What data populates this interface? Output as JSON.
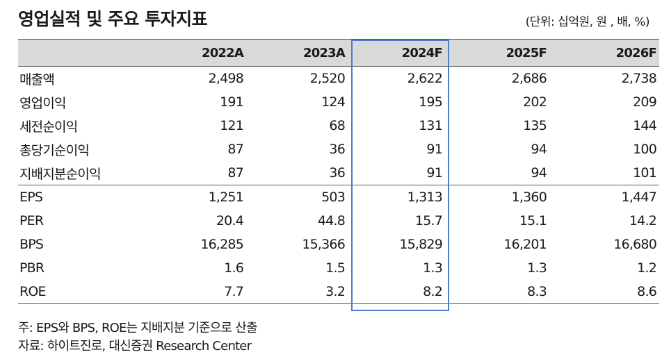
{
  "title": "영업실적 및 주요 투자지표",
  "unit": "(단위: 십억원, 원 , 배, %)",
  "table": {
    "headers": [
      "",
      "2022A",
      "2023A",
      "2024F",
      "2025F",
      "2026F"
    ],
    "rows": [
      [
        "매출액",
        "2,498",
        "2,520",
        "2,622",
        "2,686",
        "2,738"
      ],
      [
        "영업이익",
        "191",
        "124",
        "195",
        "202",
        "209"
      ],
      [
        "세전순이익",
        "121",
        "68",
        "131",
        "135",
        "144"
      ],
      [
        "총당기순이익",
        "87",
        "36",
        "91",
        "94",
        "100"
      ],
      [
        "지배지분순이익",
        "87",
        "36",
        "91",
        "94",
        "101"
      ],
      [
        "EPS",
        "1,251",
        "503",
        "1,313",
        "1,360",
        "1,447"
      ],
      [
        "PER",
        "20.4",
        "44.8",
        "15.7",
        "15.1",
        "14.2"
      ],
      [
        "BPS",
        "16,285",
        "15,366",
        "15,829",
        "16,201",
        "16,680"
      ],
      [
        "PBR",
        "1.6",
        "1.5",
        "1.3",
        "1.3",
        "1.2"
      ],
      [
        "ROE",
        "7.7",
        "3.2",
        "8.2",
        "8.3",
        "8.6"
      ]
    ]
  },
  "notes": {
    "note1": "주: EPS와 BPS, ROE는 지배지분 기준으로 산출",
    "note2": "자료: 하이트진로, 대신증권 Research Center"
  },
  "colors": {
    "header_bg": "#d9d9d9",
    "highlight_border": "#4a7cc7"
  }
}
